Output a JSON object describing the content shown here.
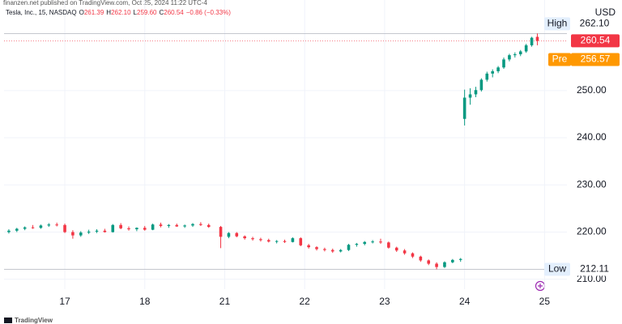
{
  "chart_data": {
    "type": "candlestick",
    "publisher": "finanzen.net published on TradingView.com, Oct 25, 2024 11:22 UTC-4",
    "title": "Tesla, Inc., 15, NASDAQ",
    "ohlc_legend": [
      {
        "key": "O",
        "text": "261.39"
      },
      {
        "key": "H",
        "text": "262.10"
      },
      {
        "key": "L",
        "text": "259.60"
      },
      {
        "key": "C",
        "text": "260.54"
      }
    ],
    "change": "−0.86 (−0.33%)",
    "currency": "USD",
    "footer": "TradingView",
    "up_color": "#089981",
    "down_color": "#f23645",
    "grid": true,
    "x": [
      -0.7,
      -0.6,
      -0.5,
      -0.4,
      -0.3,
      -0.2,
      -0.1,
      0.0,
      0.1,
      0.2,
      0.3,
      0.4,
      0.5,
      0.6,
      0.7,
      0.8,
      0.9,
      1.0,
      1.1,
      1.2,
      1.3,
      1.4,
      1.5,
      1.6,
      1.7,
      1.8,
      1.95,
      2.05,
      2.15,
      2.25,
      2.35,
      2.45,
      2.55,
      2.65,
      2.75,
      2.85,
      2.95,
      3.05,
      3.15,
      3.25,
      3.35,
      3.45,
      3.55,
      3.65,
      3.75,
      3.85,
      3.95,
      4.05,
      4.15,
      4.25,
      4.35,
      4.45,
      4.55,
      4.65,
      4.75,
      4.85,
      4.95,
      5.0,
      5.07,
      5.14,
      5.21,
      5.28,
      5.35,
      5.42,
      5.49,
      5.56,
      5.63,
      5.7,
      5.77,
      5.84,
      5.91
    ],
    "open": [
      220.0,
      220.3,
      220.7,
      221.0,
      220.9,
      221.4,
      221.6,
      221.5,
      220.0,
      219.3,
      219.9,
      220.1,
      220.3,
      220.0,
      221.5,
      220.8,
      220.6,
      220.9,
      220.5,
      221.6,
      221.3,
      221.5,
      221.2,
      221.4,
      221.7,
      221.5,
      221.1,
      219.0,
      219.8,
      219.1,
      218.7,
      218.5,
      218.3,
      218.0,
      218.1,
      217.9,
      218.7,
      217.2,
      216.8,
      216.4,
      216.2,
      215.9,
      216.2,
      217.3,
      217.5,
      217.9,
      218.0,
      217.8,
      216.7,
      216.1,
      215.5,
      214.8,
      214.0,
      213.3,
      212.6,
      213.6,
      214.1,
      244.0,
      248.5,
      249.2,
      250.1,
      252.3,
      253.6,
      254.1,
      254.9,
      256.6,
      257.5,
      257.7,
      258.3,
      259.6,
      261.39
    ],
    "high": [
      220.6,
      220.9,
      221.2,
      221.5,
      221.6,
      221.9,
      222.0,
      221.8,
      220.4,
      220.2,
      220.5,
      220.6,
      220.7,
      221.7,
      221.9,
      221.2,
      221.0,
      221.3,
      221.8,
      222.0,
      221.7,
      221.8,
      221.6,
      221.9,
      222.1,
      221.8,
      221.3,
      220.0,
      220.0,
      219.3,
      219.0,
      218.8,
      218.6,
      218.3,
      218.4,
      218.9,
      218.9,
      217.5,
      217.0,
      216.7,
      216.5,
      216.4,
      217.5,
      217.7,
      218.1,
      218.3,
      218.6,
      218.0,
      216.9,
      216.4,
      215.7,
      215.0,
      214.2,
      213.6,
      213.8,
      214.3,
      214.5,
      250.2,
      250.5,
      250.8,
      252.6,
      254.0,
      254.5,
      255.2,
      257.0,
      257.8,
      258.1,
      258.6,
      259.9,
      261.4,
      262.1
    ],
    "low": [
      219.7,
      220.0,
      220.4,
      220.7,
      220.7,
      221.1,
      221.2,
      219.8,
      218.6,
      219.0,
      219.6,
      219.8,
      219.9,
      219.9,
      220.6,
      220.3,
      220.2,
      220.3,
      220.4,
      221.0,
      220.9,
      221.1,
      220.9,
      221.1,
      221.3,
      220.9,
      216.6,
      218.7,
      218.9,
      218.4,
      218.2,
      218.0,
      217.8,
      217.6,
      217.7,
      217.8,
      217.0,
      216.5,
      216.1,
      215.9,
      215.6,
      215.7,
      216.0,
      216.9,
      217.2,
      217.6,
      217.5,
      216.5,
      215.8,
      215.2,
      214.5,
      213.7,
      213.0,
      212.11,
      212.4,
      213.4,
      213.7,
      242.6,
      247.0,
      248.6,
      249.8,
      251.9,
      252.8,
      253.7,
      254.6,
      256.2,
      257.0,
      257.3,
      258.0,
      259.3,
      259.6
    ],
    "close": [
      220.3,
      220.7,
      221.0,
      220.9,
      221.4,
      221.6,
      221.5,
      220.0,
      219.3,
      219.9,
      220.1,
      220.3,
      220.0,
      221.5,
      220.8,
      220.6,
      220.9,
      220.5,
      221.6,
      221.3,
      221.5,
      221.2,
      221.4,
      221.7,
      221.5,
      221.1,
      219.0,
      219.8,
      219.1,
      218.7,
      218.5,
      218.3,
      218.0,
      218.1,
      217.9,
      218.7,
      217.2,
      216.8,
      216.4,
      216.2,
      215.9,
      216.2,
      217.3,
      217.5,
      217.9,
      218.0,
      217.8,
      216.7,
      216.1,
      215.5,
      214.8,
      214.0,
      213.3,
      212.6,
      213.6,
      214.1,
      214.3,
      248.5,
      249.2,
      250.1,
      252.3,
      253.6,
      254.1,
      254.9,
      256.6,
      257.5,
      257.7,
      258.3,
      259.6,
      261.2,
      260.54
    ],
    "xlim": [
      -0.76,
      6.28
    ],
    "ylim": [
      207.9,
      269.2
    ],
    "xticks": [
      {
        "value": 0,
        "label": "17"
      },
      {
        "value": 1,
        "label": "18"
      },
      {
        "value": 2,
        "label": "21"
      },
      {
        "value": 3,
        "label": "22"
      },
      {
        "value": 4,
        "label": "23"
      },
      {
        "value": 5,
        "label": "24"
      },
      {
        "value": 6,
        "label": "25"
      }
    ],
    "yticks": [
      {
        "value": 210,
        "label": "210.00"
      },
      {
        "value": 220,
        "label": "220.00"
      },
      {
        "value": 230,
        "label": "230.00"
      },
      {
        "value": 240,
        "label": "240.00"
      },
      {
        "value": 250,
        "label": "250.00"
      }
    ],
    "high_line": {
      "label": "High",
      "value": 262.1,
      "value_label": "262.10"
    },
    "low_line": {
      "label": "Low",
      "value": 212.11
    },
    "last_price": {
      "value": 260.54,
      "color": "#f23645"
    },
    "pre_market": {
      "label": "Pre",
      "value": 256.57,
      "color": "#ff9800"
    }
  }
}
